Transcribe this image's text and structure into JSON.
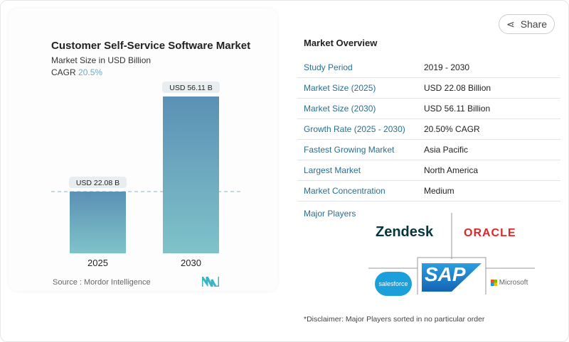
{
  "share_label": "Share",
  "chart_data": {
    "type": "bar",
    "title": "Customer Self-Service Software Market",
    "subtitle": "Market Size in USD Billion",
    "cagr_label": "CAGR",
    "cagr_value": "20.5%",
    "categories": [
      "2025",
      "2030"
    ],
    "values": [
      22.08,
      56.11
    ],
    "data_labels": [
      "USD 22.08 B",
      "USD 56.11 B"
    ],
    "reference_line": "dashed at 2025 value",
    "colors": {
      "bar_top": "#5b90b5",
      "bar_bottom": "#7fc3c9"
    },
    "source": "Source :  Mordor Intelligence"
  },
  "overview": {
    "title": "Market Overview",
    "rows": [
      {
        "label": "Study Period",
        "value": "2019 - 2030"
      },
      {
        "label": "Market Size (2025)",
        "value": "USD 22.08 Billion"
      },
      {
        "label": "Market Size (2030)",
        "value": "USD 56.11 Billion"
      },
      {
        "label": "Growth Rate (2025 - 2030)",
        "value": "20.50% CAGR"
      },
      {
        "label": "Fastest Growing Market",
        "value": "Asia Pacific"
      },
      {
        "label": "Largest Market",
        "value": "North America"
      },
      {
        "label": "Market Concentration",
        "value": "Medium"
      }
    ],
    "major_players_label": "Major Players",
    "players": [
      "zendesk",
      "ORACLE",
      "salesforce",
      "SAP",
      "Microsoft"
    ],
    "disclaimer": "*Disclaimer: Major Players sorted in no particular order"
  }
}
